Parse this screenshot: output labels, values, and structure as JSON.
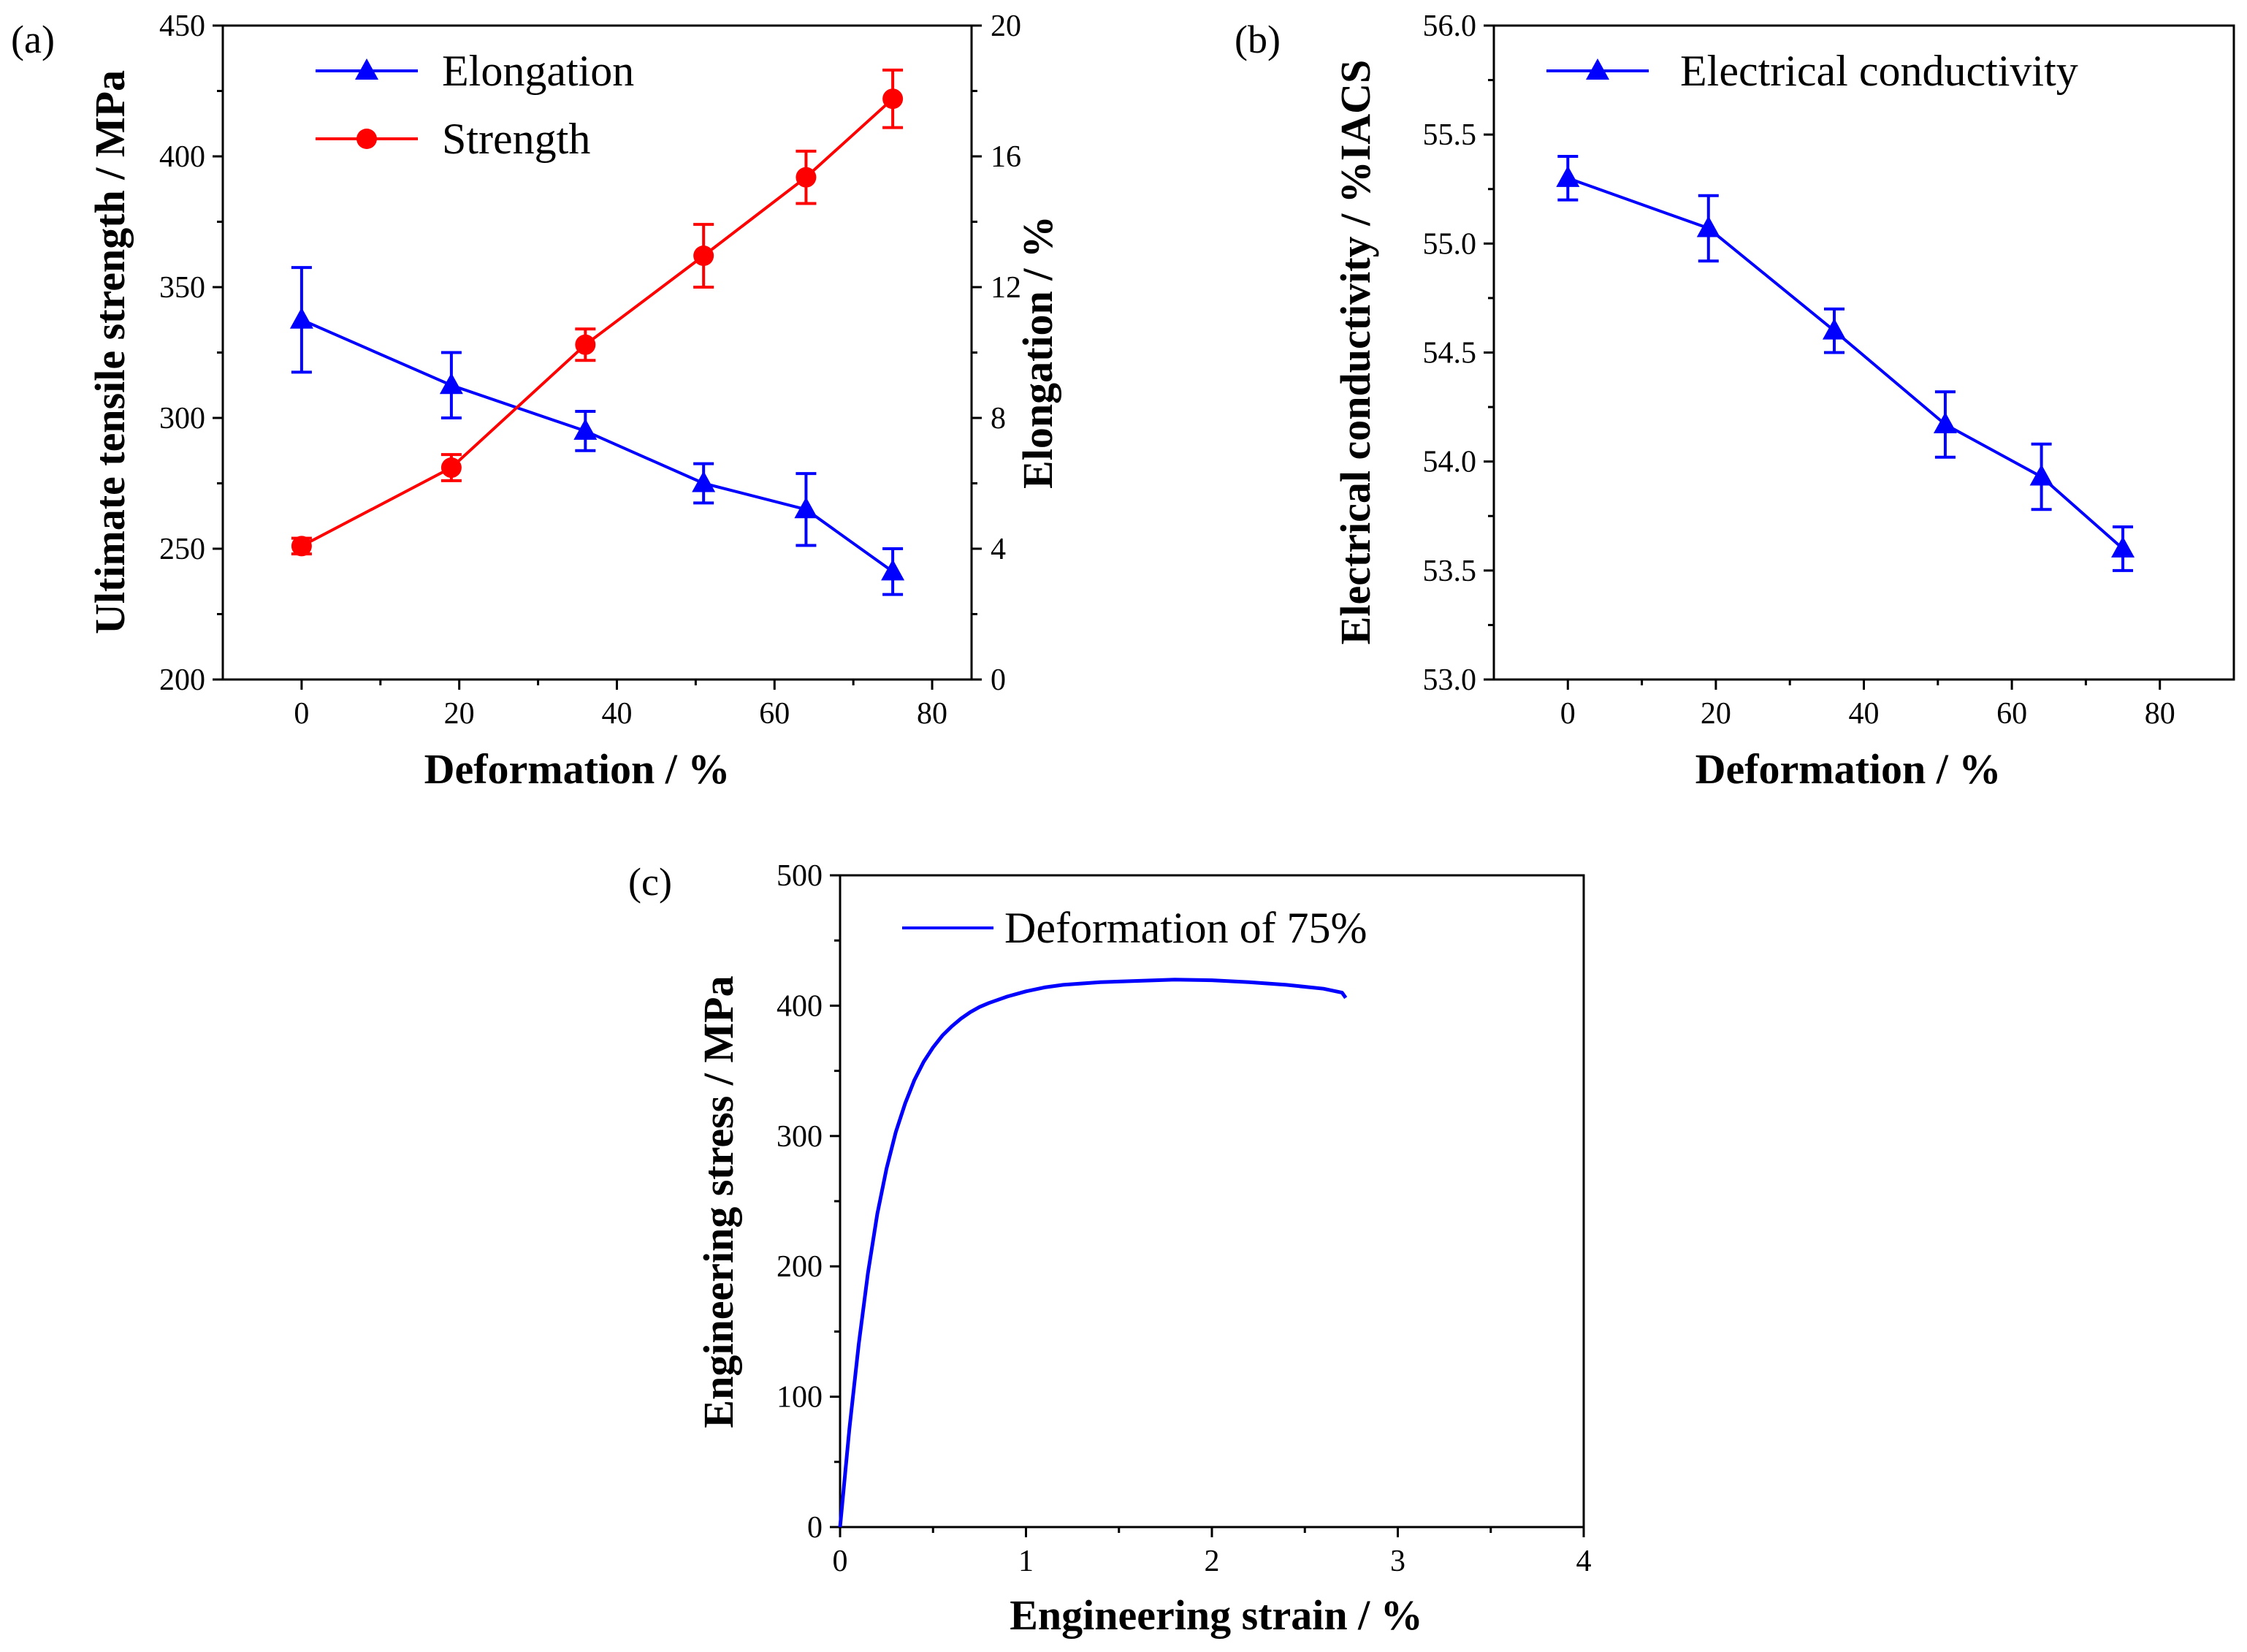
{
  "colors": {
    "blue": "#0000ff",
    "red": "#ff0000",
    "axis": "#000000"
  },
  "chart_data": [
    {
      "panel": "(a)",
      "type": "line",
      "xlabel": "Deformation / %",
      "ylabel": "Ultimate tensile strength / MPa",
      "y2label": "Elongation / %",
      "xlim": [
        -10,
        85
      ],
      "xticks": [
        0,
        20,
        40,
        60,
        80
      ],
      "ylim": [
        200,
        450
      ],
      "yticks": [
        200,
        250,
        300,
        350,
        400,
        450
      ],
      "y2lim": [
        0,
        20
      ],
      "y2ticks": [
        0,
        4,
        8,
        12,
        16,
        20
      ],
      "legend": "top-left",
      "series": [
        {
          "name": "Elongation",
          "axis": "right",
          "color": "#0000ff",
          "marker": "triangle",
          "x": [
            0,
            19,
            36,
            51,
            64,
            75
          ],
          "y": [
            11.0,
            9.0,
            7.6,
            6.0,
            5.2,
            3.3
          ],
          "err": [
            1.6,
            1.0,
            0.6,
            0.6,
            1.1,
            0.7
          ]
        },
        {
          "name": "Strength",
          "axis": "left",
          "color": "#ff0000",
          "marker": "circle",
          "x": [
            0,
            19,
            36,
            51,
            64,
            75
          ],
          "y": [
            251,
            281,
            328,
            362,
            392,
            422
          ],
          "err": [
            3,
            5,
            6,
            12,
            10,
            11
          ]
        }
      ]
    },
    {
      "panel": "(b)",
      "type": "line",
      "xlabel": "Deformation / %",
      "ylabel": "Electrical conductivity / %IACS",
      "xlim": [
        -10,
        90
      ],
      "xticks": [
        0,
        20,
        40,
        60,
        80
      ],
      "ylim": [
        53.0,
        56.0
      ],
      "yticks": [
        53.0,
        53.5,
        54.0,
        54.5,
        55.0,
        55.5,
        56.0
      ],
      "legend": "top-left",
      "series": [
        {
          "name": "Electrical conductivity",
          "color": "#0000ff",
          "marker": "triangle",
          "x": [
            0,
            19,
            36,
            51,
            64,
            75
          ],
          "y": [
            55.3,
            55.07,
            54.6,
            54.17,
            53.93,
            53.6
          ],
          "err": [
            0.1,
            0.15,
            0.1,
            0.15,
            0.15,
            0.1
          ]
        }
      ]
    },
    {
      "panel": "(c)",
      "type": "line",
      "xlabel": "Engineering strain / %",
      "ylabel": "Engineering stress / MPa",
      "xlim": [
        0,
        4
      ],
      "xticks": [
        0,
        1,
        2,
        3,
        4
      ],
      "ylim": [
        0,
        500
      ],
      "yticks": [
        0,
        100,
        200,
        300,
        400,
        500
      ],
      "legend": "top-left",
      "series": [
        {
          "name": "Deformation of 75%",
          "color": "#0000ff",
          "x": [
            0,
            0.05,
            0.1,
            0.15,
            0.2,
            0.25,
            0.3,
            0.35,
            0.4,
            0.45,
            0.5,
            0.55,
            0.6,
            0.65,
            0.7,
            0.75,
            0.8,
            0.9,
            1.0,
            1.1,
            1.2,
            1.4,
            1.6,
            1.8,
            2.0,
            2.2,
            2.4,
            2.6,
            2.7,
            2.72
          ],
          "y": [
            0,
            75,
            140,
            195,
            240,
            275,
            303,
            325,
            343,
            357,
            368,
            377,
            384,
            390,
            395,
            399,
            402,
            407,
            411,
            414,
            416,
            418,
            419,
            420,
            419.5,
            418,
            416,
            413,
            410,
            406
          ]
        }
      ]
    }
  ]
}
